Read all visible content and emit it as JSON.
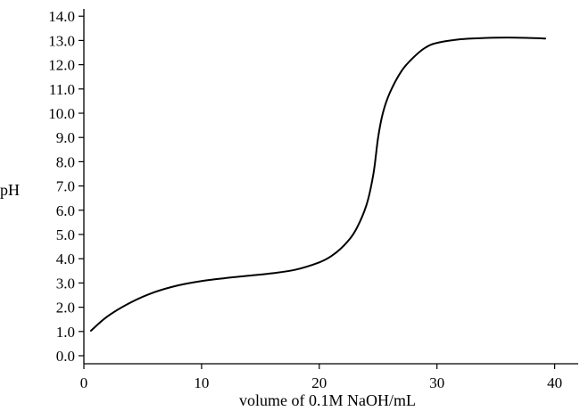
{
  "chart_data": {
    "type": "line",
    "title": "",
    "xlabel": "volume of 0.1M NaOH/mL",
    "ylabel": "pH",
    "xlim": [
      0,
      42
    ],
    "ylim": [
      0,
      14
    ],
    "x_ticks": [
      0,
      10,
      20,
      30,
      40
    ],
    "x_tick_labels": [
      "0",
      "10",
      "20",
      "30",
      "40"
    ],
    "y_ticks": [
      0,
      1,
      2,
      3,
      4,
      5,
      6,
      7,
      8,
      9,
      10,
      11,
      12,
      13,
      14
    ],
    "y_tick_labels": [
      "0.0",
      "1.0",
      "2.0",
      "3.0",
      "4.0",
      "5.0",
      "6.0",
      "7.0",
      "8.0",
      "9.0",
      "10.0",
      "11.0",
      "12.0",
      "13.0",
      "14.0"
    ],
    "grid": false,
    "legend": "none",
    "series": [
      {
        "color": "#000000",
        "points": [
          [
            0.6,
            1.03
          ],
          [
            2,
            1.62
          ],
          [
            4,
            2.2
          ],
          [
            6,
            2.62
          ],
          [
            8,
            2.9
          ],
          [
            10,
            3.08
          ],
          [
            12,
            3.2
          ],
          [
            14,
            3.3
          ],
          [
            16,
            3.4
          ],
          [
            18,
            3.55
          ],
          [
            20,
            3.85
          ],
          [
            21,
            4.1
          ],
          [
            22,
            4.5
          ],
          [
            23,
            5.1
          ],
          [
            24,
            6.2
          ],
          [
            24.6,
            7.5
          ],
          [
            25,
            9.0
          ],
          [
            25.4,
            10.0
          ],
          [
            26,
            10.85
          ],
          [
            27,
            11.75
          ],
          [
            28,
            12.3
          ],
          [
            29,
            12.7
          ],
          [
            30,
            12.9
          ],
          [
            32,
            13.05
          ],
          [
            34,
            13.1
          ],
          [
            36,
            13.12
          ],
          [
            38,
            13.1
          ],
          [
            39.2,
            13.08
          ]
        ]
      }
    ]
  }
}
